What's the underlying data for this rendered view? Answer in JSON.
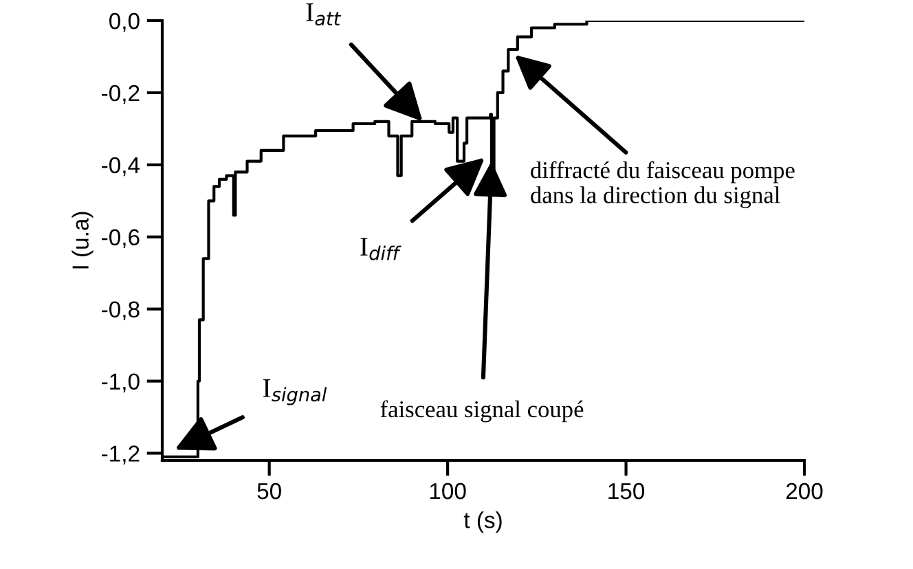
{
  "chart_data": {
    "type": "step",
    "xlabel": "t (s)",
    "ylabel": "I (u.a)",
    "xlim": [
      20,
      200
    ],
    "ylim": [
      -1.22,
      0
    ],
    "xticks": [
      50,
      100,
      150,
      200
    ],
    "yticks": [
      {
        "value": 0,
        "label": "0,0"
      },
      {
        "value": -0.2,
        "label": "-0,2"
      },
      {
        "value": -0.4,
        "label": "-0,4"
      },
      {
        "value": -0.6,
        "label": "-0,6"
      },
      {
        "value": -0.8,
        "label": "-0,8"
      },
      {
        "value": -1.0,
        "label": "-1,0"
      },
      {
        "value": -1.2,
        "label": "-1,2"
      }
    ],
    "grid": false,
    "legend": false,
    "marker": "none",
    "line_style": "solid",
    "series": [
      {
        "color": "#000000",
        "x": [
          20,
          25,
          29,
          30,
          30.4,
          31.5,
          33,
          34.5,
          36,
          38,
          39.5,
          40,
          40.5,
          43.8,
          47.7,
          54,
          63,
          73.5,
          79.6,
          83.5,
          86,
          87,
          90,
          96.5,
          100.4,
          101.5,
          102.7,
          104.6,
          105.4,
          112,
          112.3,
          113,
          114,
          115.5,
          117,
          119.6,
          123.5,
          130,
          139,
          160,
          200
        ],
        "values": [
          -1.21,
          -1.21,
          -1.21,
          -1.0,
          -0.83,
          -0.66,
          -0.5,
          -0.46,
          -0.44,
          -0.43,
          -0.43,
          -0.54,
          -0.42,
          -0.39,
          -0.36,
          -0.32,
          -0.305,
          -0.286,
          -0.28,
          -0.32,
          -0.43,
          -0.32,
          -0.28,
          -0.286,
          -0.31,
          -0.27,
          -0.39,
          -0.34,
          -0.27,
          -0.26,
          -0.44,
          -0.27,
          -0.2,
          -0.14,
          -0.08,
          -0.045,
          -0.02,
          -0.01,
          0.0,
          0.0,
          0.0
        ]
      }
    ],
    "annotations": [
      {
        "text": "I$_{att}$",
        "x": 93,
        "y": -0.28
      },
      {
        "text": "I$_{diff}$",
        "x": 110.4,
        "y": -0.38
      },
      {
        "text": "faisceau signal coupé",
        "x": 112.3,
        "y": -0.39
      },
      {
        "text": "diffracté du faisceau pompe\ndans la direction du signal",
        "x": 118.8,
        "y": -0.095
      },
      {
        "text": "I$_{signal}$",
        "x": 23.5,
        "y": -1.19
      }
    ]
  }
}
